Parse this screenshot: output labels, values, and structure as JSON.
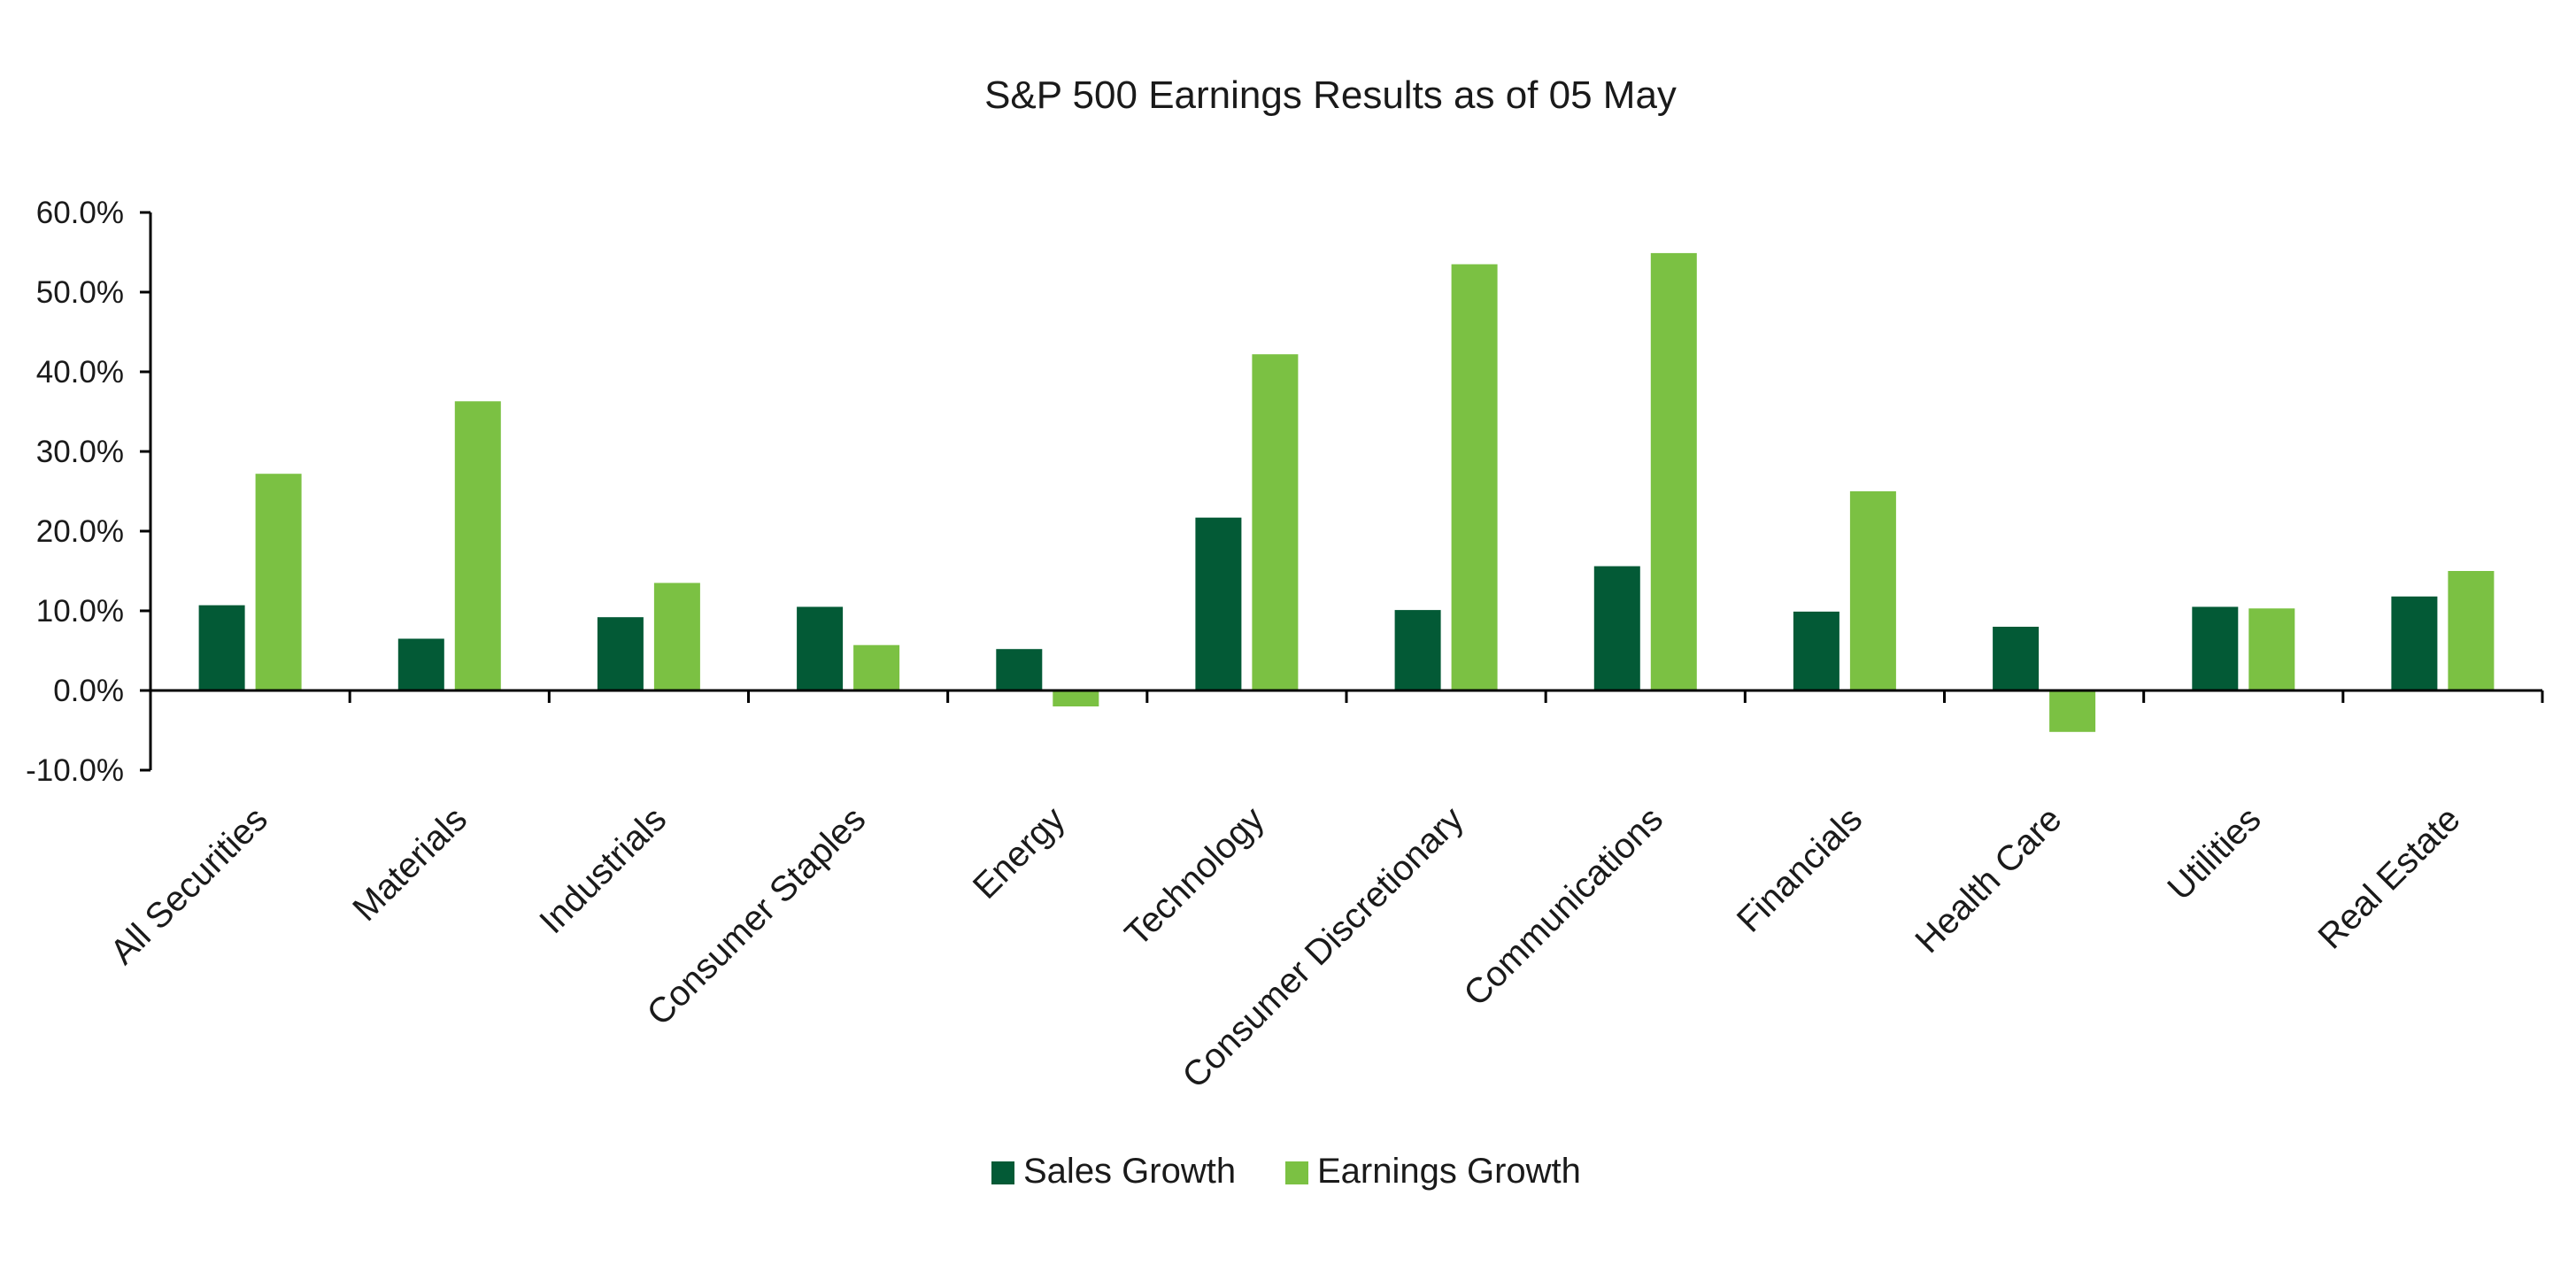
{
  "chart_data": {
    "type": "bar",
    "title": "S&P 500 Earnings Results as of 05 May",
    "xlabel": "",
    "ylabel": "",
    "ylim": [
      -10,
      60
    ],
    "yticks": [
      60,
      50,
      40,
      30,
      20,
      10,
      0,
      -10
    ],
    "ytick_labels": [
      "60.0%",
      "50.0%",
      "40.0%",
      "30.0%",
      "20.0%",
      "10.0%",
      "0.0%",
      "-10.0%"
    ],
    "categories": [
      "All Securities",
      "Materials",
      "Industrials",
      "Consumer Staples",
      "Energy",
      "Technology",
      "Consumer Discretionary",
      "Communications",
      "Financials",
      "Health Care",
      "Utilities",
      "Real Estate"
    ],
    "series": [
      {
        "name": "Sales Growth",
        "color": "#035a36",
        "values": [
          10.7,
          6.5,
          9.2,
          10.5,
          5.2,
          21.7,
          10.1,
          15.6,
          9.9,
          8.0,
          10.5,
          11.8
        ]
      },
      {
        "name": "Earnings Growth",
        "color": "#7bc143",
        "values": [
          27.2,
          36.3,
          13.5,
          5.7,
          -2.0,
          42.2,
          53.5,
          54.9,
          25.0,
          -5.2,
          10.3,
          15.0
        ]
      }
    ],
    "grid": false,
    "legend_position": "bottom-center"
  }
}
